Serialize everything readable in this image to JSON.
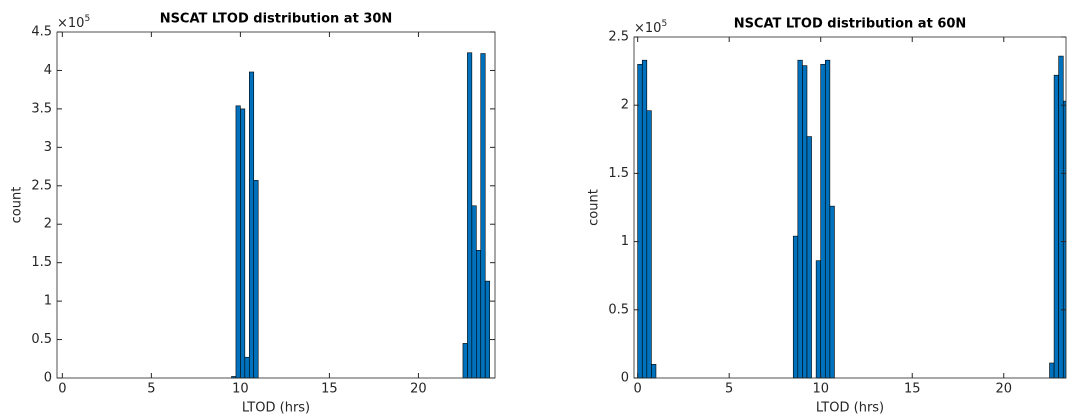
{
  "chart_data": [
    {
      "type": "histogram",
      "title": "NSCAT LTOD distribution at 30N",
      "x_label": "LTOD (hrs)",
      "y_label": "count",
      "y_scale_base": "×10",
      "y_scale_exponent": "5",
      "color": "#0072bd",
      "bins": [
        0,
        0.25,
        0.5,
        0.75,
        1,
        1.25,
        1.5,
        1.75,
        2,
        2.25,
        2.5,
        2.75,
        3,
        3.25,
        3.5,
        3.75,
        4,
        4.25,
        4.5,
        4.75,
        5,
        5.25,
        5.5,
        5.75,
        6,
        6.25,
        6.5,
        6.75,
        7,
        7.25,
        7.5,
        7.75,
        8,
        8.25,
        8.5,
        8.75,
        9,
        9.25,
        9.5,
        9.75,
        10,
        10.25,
        10.5,
        10.75,
        11,
        11.25,
        11.5,
        11.75,
        12,
        12.25,
        12.5,
        12.75,
        13,
        13.25,
        13.5,
        13.75,
        14,
        14.25,
        14.5,
        14.75,
        15,
        15.25,
        15.5,
        15.75,
        16,
        16.25,
        16.5,
        16.75,
        17,
        17.25,
        17.5,
        17.75,
        18,
        18.25,
        18.5,
        18.75,
        19,
        19.25,
        19.5,
        19.75,
        20,
        20.25,
        20.5,
        20.75,
        21,
        21.25,
        21.5,
        21.75,
        22,
        22.25,
        22.5,
        22.75,
        23,
        23.25,
        23.5,
        23.75,
        24
      ],
      "values": [
        0,
        0,
        0,
        0,
        0,
        0,
        0,
        0,
        0,
        0,
        0,
        0,
        0,
        0,
        0,
        0,
        0,
        0,
        0,
        0,
        0,
        0,
        0,
        0,
        0,
        0,
        0,
        0,
        0,
        0,
        0,
        0,
        0,
        0,
        0,
        0,
        0,
        0,
        2000,
        354000,
        350000,
        27000,
        398000,
        257000,
        0,
        0,
        0,
        0,
        0,
        0,
        0,
        0,
        0,
        0,
        0,
        0,
        0,
        0,
        0,
        0,
        0,
        0,
        0,
        0,
        0,
        0,
        0,
        0,
        0,
        0,
        0,
        0,
        0,
        0,
        0,
        0,
        0,
        0,
        0,
        0,
        0,
        0,
        0,
        0,
        0,
        0,
        0,
        0,
        0,
        0,
        45000,
        423000,
        224000,
        166000,
        422000,
        126000
      ],
      "xlim": [
        -0.3,
        24.3
      ],
      "xticks": [
        0,
        5,
        10,
        15,
        20
      ],
      "ylim": [
        0,
        450000
      ],
      "yticks": [
        0,
        {
          "value": 50000,
          "label": "0.5"
        },
        {
          "value": 100000,
          "label": "1"
        },
        {
          "value": 150000,
          "label": "1.5"
        },
        {
          "value": 200000,
          "label": "2"
        },
        {
          "value": 250000,
          "label": "2.5"
        },
        {
          "value": 300000,
          "label": "3"
        },
        {
          "value": 350000,
          "label": "3.5"
        },
        {
          "value": 400000,
          "label": "4"
        },
        {
          "value": 450000,
          "label": "4.5"
        }
      ]
    },
    {
      "type": "histogram",
      "title": "NSCAT LTOD distribution at 60N",
      "x_label": "LTOD (hrs)",
      "y_label": "count",
      "y_scale_base": "×10",
      "y_scale_exponent": "5",
      "color": "#0072bd",
      "bins": [
        0,
        0.25,
        0.5,
        0.75,
        1,
        1.25,
        1.5,
        1.75,
        2,
        2.25,
        2.5,
        2.75,
        3,
        3.25,
        3.5,
        3.75,
        4,
        4.25,
        4.5,
        4.75,
        5,
        5.25,
        5.5,
        5.75,
        6,
        6.25,
        6.5,
        6.75,
        7,
        7.25,
        7.5,
        7.75,
        8,
        8.25,
        8.5,
        8.75,
        9,
        9.25,
        9.5,
        9.75,
        10,
        10.25,
        10.5,
        10.75,
        11,
        11.25,
        11.5,
        11.75,
        12,
        12.25,
        12.5,
        12.75,
        13,
        13.25,
        13.5,
        13.75,
        14,
        14.25,
        14.5,
        14.75,
        15,
        15.25,
        15.5,
        15.75,
        16,
        16.25,
        16.5,
        16.75,
        17,
        17.25,
        17.5,
        17.75,
        18,
        18.25,
        18.5,
        18.75,
        19,
        19.25,
        19.5,
        19.75,
        20,
        20.25,
        20.5,
        20.75,
        21,
        21.25,
        21.5,
        21.75,
        22,
        22.25,
        22.5,
        22.75,
        23,
        23.25,
        23.5,
        23.75,
        24
      ],
      "values": [
        230000,
        233000,
        196000,
        10000,
        0,
        0,
        0,
        0,
        0,
        0,
        0,
        0,
        0,
        0,
        0,
        0,
        0,
        0,
        0,
        0,
        0,
        0,
        0,
        0,
        0,
        0,
        0,
        0,
        0,
        0,
        0,
        0,
        0,
        0,
        104000,
        233000,
        229000,
        177000,
        0,
        86000,
        230000,
        233000,
        126000,
        0,
        0,
        0,
        0,
        0,
        0,
        0,
        0,
        0,
        0,
        0,
        0,
        0,
        0,
        0,
        0,
        0,
        0,
        0,
        0,
        0,
        0,
        0,
        0,
        0,
        0,
        0,
        0,
        0,
        0,
        0,
        0,
        0,
        0,
        0,
        0,
        0,
        0,
        0,
        0,
        0,
        0,
        0,
        0,
        0,
        0,
        0,
        11000,
        222000,
        236000,
        203000,
        0,
        0
      ],
      "xlim": [
        -0.2,
        23.4
      ],
      "xticks": [
        0,
        5,
        10,
        15,
        20
      ],
      "ylim": [
        0,
        250000
      ],
      "yticks": [
        0,
        {
          "value": 50000,
          "label": "0.5"
        },
        {
          "value": 100000,
          "label": "1"
        },
        {
          "value": 150000,
          "label": "1.5"
        },
        {
          "value": 200000,
          "label": "2"
        },
        {
          "value": 250000,
          "label": "2.5"
        }
      ]
    }
  ]
}
